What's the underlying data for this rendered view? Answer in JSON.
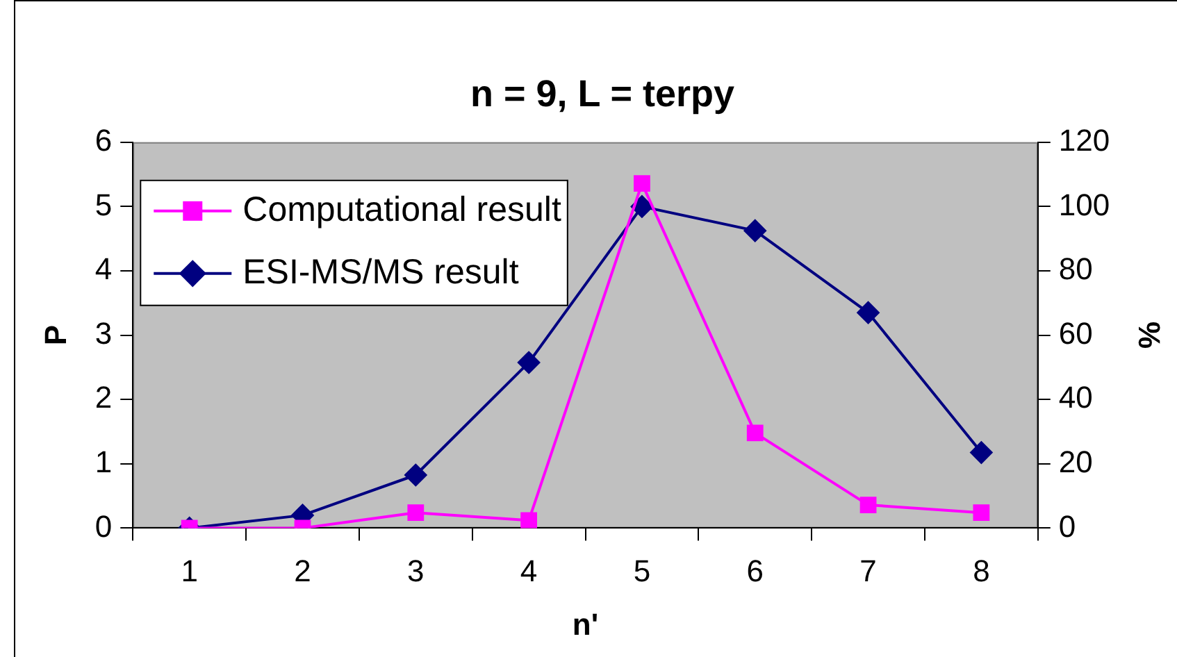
{
  "chart_data": {
    "type": "line",
    "title": "n = 9, L = terpy",
    "xlabel": "n'",
    "ylabel": "P",
    "y2label": "%",
    "categories": [
      "1",
      "2",
      "3",
      "4",
      "5",
      "6",
      "7",
      "8"
    ],
    "series": [
      {
        "name": "Computational result",
        "color": "#ff00ff",
        "marker": "square",
        "axis": "y",
        "values": [
          0,
          0,
          0.24,
          0.12,
          5.36,
          1.48,
          0.36,
          0.24
        ]
      },
      {
        "name": "ESI-MS/MS result",
        "color": "#000080",
        "marker": "diamond",
        "axis": "y2",
        "values": [
          0,
          4,
          16.5,
          51.5,
          100,
          92.5,
          67,
          23.5
        ]
      }
    ],
    "ylim": [
      0,
      6
    ],
    "yticks": [
      0,
      1,
      2,
      3,
      4,
      5,
      6
    ],
    "y2lim": [
      0,
      120
    ],
    "y2ticks": [
      0,
      20,
      40,
      60,
      80,
      100,
      120
    ],
    "legend": "top left",
    "line_style": "solid"
  }
}
